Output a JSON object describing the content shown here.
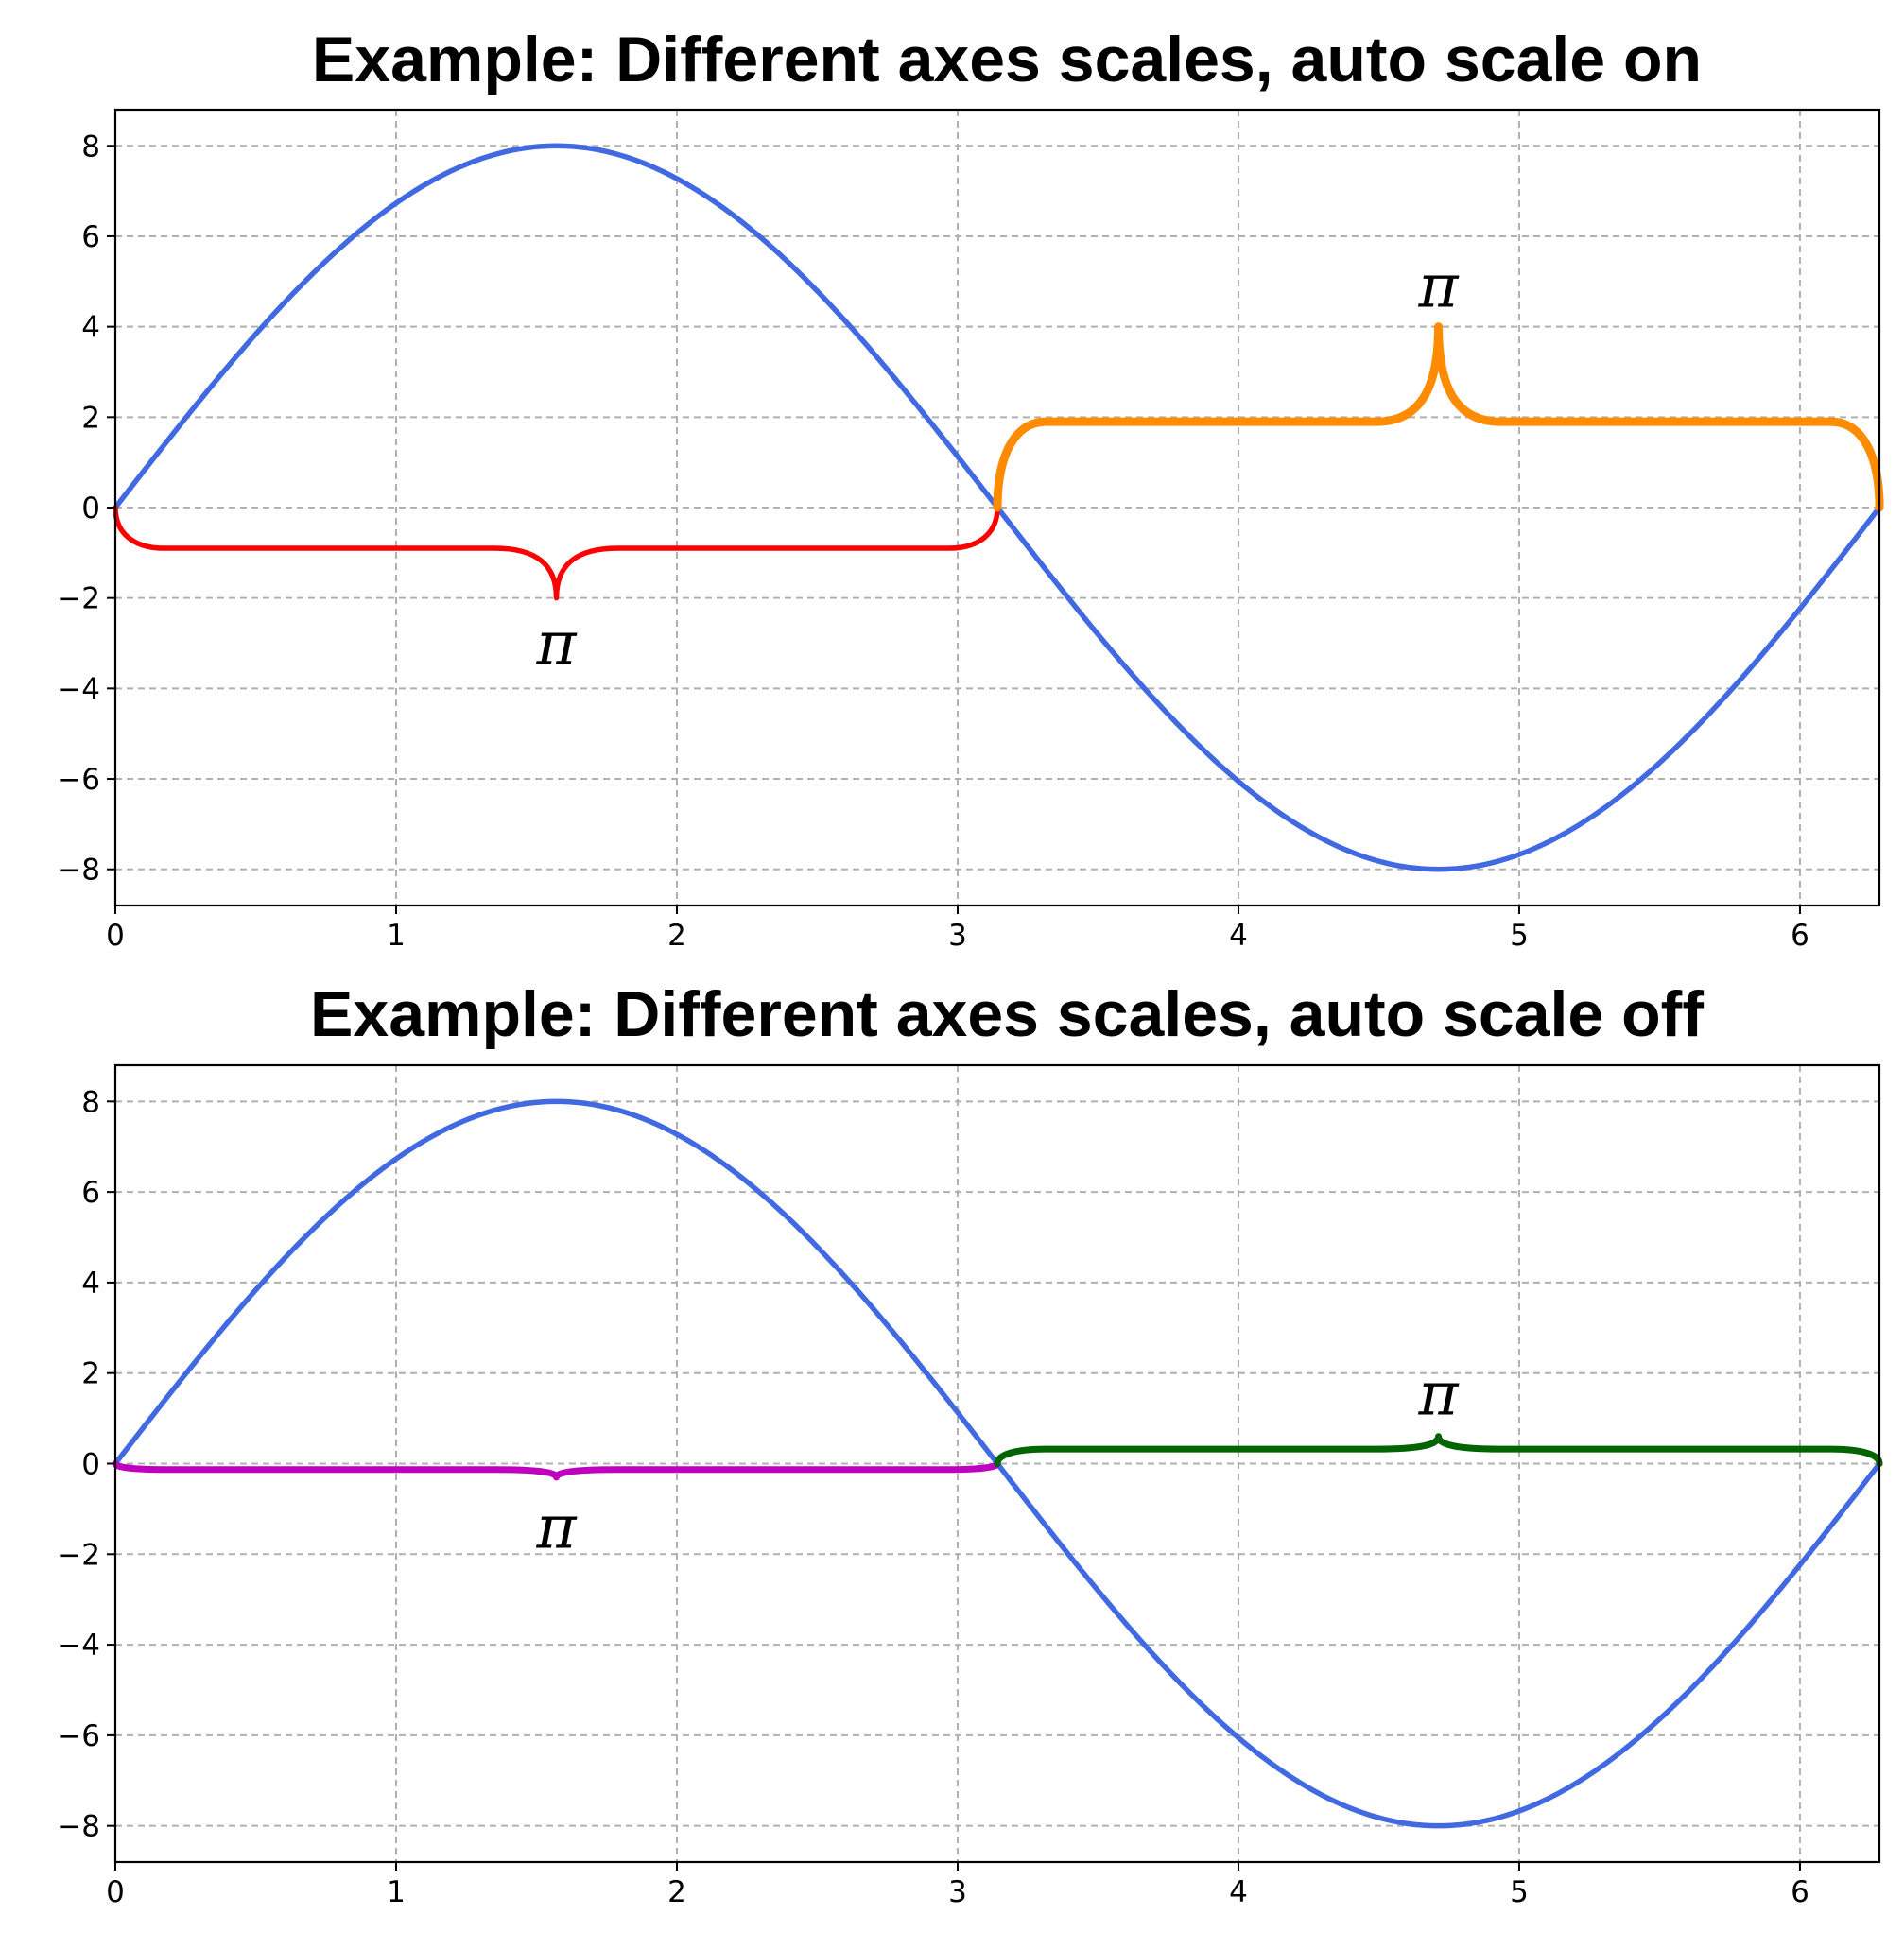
{
  "chart_data": [
    {
      "type": "line",
      "title": "Example: Different axes scales, auto scale on",
      "xlim": [
        0,
        6.283
      ],
      "ylim": [
        -8.8,
        8.8
      ],
      "xticks": [
        0,
        1,
        2,
        3,
        4,
        5,
        6
      ],
      "yticks": [
        -8,
        -6,
        -4,
        -2,
        0,
        2,
        4,
        6,
        8
      ],
      "ytick_labels": [
        "−8",
        "−6",
        "−4",
        "−2",
        "0",
        "2",
        "4",
        "6",
        "8"
      ],
      "grid": true,
      "series": [
        {
          "function": "8*sin(x)",
          "x_range": [
            0,
            6.283
          ],
          "color": "#4169e1",
          "x": [
            0,
            0.5,
            1.0,
            1.5708,
            2.0,
            2.5,
            3.1416,
            3.5,
            4.0,
            4.7124,
            5.0,
            5.5,
            6.0,
            6.283
          ],
          "y": [
            0,
            3.84,
            6.73,
            8.0,
            7.27,
            4.79,
            0,
            -2.81,
            -6.05,
            -8.0,
            -7.67,
            -5.66,
            -2.24,
            0
          ]
        }
      ],
      "braces": [
        {
          "x_start": 0,
          "x_end": 3.1416,
          "baseline": 0,
          "direction": "down",
          "arm": 0.9,
          "height": 2.0,
          "color": "#ff0000",
          "label": "π",
          "label_y": -3.0
        },
        {
          "x_start": 3.1416,
          "x_end": 6.2832,
          "baseline": 0,
          "direction": "up",
          "arm": 1.9,
          "height": 4.0,
          "color": "#ff8c00",
          "label": "π",
          "label_y": 4.9
        }
      ]
    },
    {
      "type": "line",
      "title": "Example: Different axes scales, auto scale off",
      "xlim": [
        0,
        6.283
      ],
      "ylim": [
        -8.8,
        8.8
      ],
      "xticks": [
        0,
        1,
        2,
        3,
        4,
        5,
        6
      ],
      "yticks": [
        -8,
        -6,
        -4,
        -2,
        0,
        2,
        4,
        6,
        8
      ],
      "ytick_labels": [
        "−8",
        "−6",
        "−4",
        "−2",
        "0",
        "2",
        "4",
        "6",
        "8"
      ],
      "grid": true,
      "series": [
        {
          "function": "8*sin(x)",
          "x_range": [
            0,
            6.283
          ],
          "color": "#4169e1",
          "x": [
            0,
            0.5,
            1.0,
            1.5708,
            2.0,
            2.5,
            3.1416,
            3.5,
            4.0,
            4.7124,
            5.0,
            5.5,
            6.0,
            6.283
          ],
          "y": [
            0,
            3.84,
            6.73,
            8.0,
            7.27,
            4.79,
            0,
            -2.81,
            -6.05,
            -8.0,
            -7.67,
            -5.66,
            -2.24,
            0
          ]
        }
      ],
      "braces": [
        {
          "x_start": 0,
          "x_end": 3.1416,
          "baseline": 0,
          "direction": "down",
          "arm": 0.13,
          "height": 0.3,
          "color": "#bf00bf",
          "label": "π",
          "label_y": -1.4
        },
        {
          "x_start": 3.1416,
          "x_end": 6.2832,
          "baseline": 0,
          "direction": "up",
          "arm": 0.32,
          "height": 0.6,
          "color": "#006400",
          "label": "π",
          "label_y": 1.55
        }
      ]
    }
  ]
}
